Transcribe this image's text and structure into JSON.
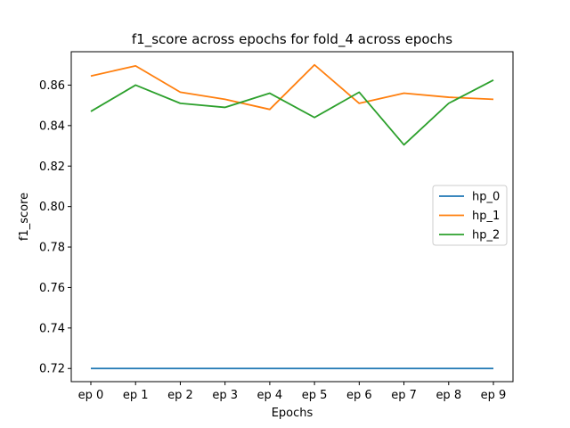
{
  "chart_data": {
    "type": "line",
    "title": "f1_score across epochs for fold_4 across epochs",
    "xlabel": "Epochs",
    "ylabel": "f1_score",
    "categories": [
      "ep 0",
      "ep 1",
      "ep 2",
      "ep 3",
      "ep 4",
      "ep 5",
      "ep 6",
      "ep 7",
      "ep 8",
      "ep 9"
    ],
    "ylim": [
      0.7135,
      0.8765
    ],
    "yticks": [
      "0.72",
      "0.74",
      "0.76",
      "0.78",
      "0.80",
      "0.82",
      "0.84",
      "0.86"
    ],
    "grid": false,
    "legend_position": "center-right",
    "series": [
      {
        "name": "hp_0",
        "color": "#1f77b4",
        "values": [
          0.72,
          0.72,
          0.72,
          0.72,
          0.72,
          0.72,
          0.72,
          0.72,
          0.72,
          0.72
        ]
      },
      {
        "name": "hp_1",
        "color": "#ff7f0e",
        "values": [
          0.8645,
          0.8695,
          0.8565,
          0.853,
          0.848,
          0.87,
          0.851,
          0.856,
          0.854,
          0.853
        ]
      },
      {
        "name": "hp_2",
        "color": "#2ca02c",
        "values": [
          0.847,
          0.86,
          0.851,
          0.849,
          0.856,
          0.844,
          0.8565,
          0.8305,
          0.851,
          0.8625
        ]
      }
    ]
  }
}
